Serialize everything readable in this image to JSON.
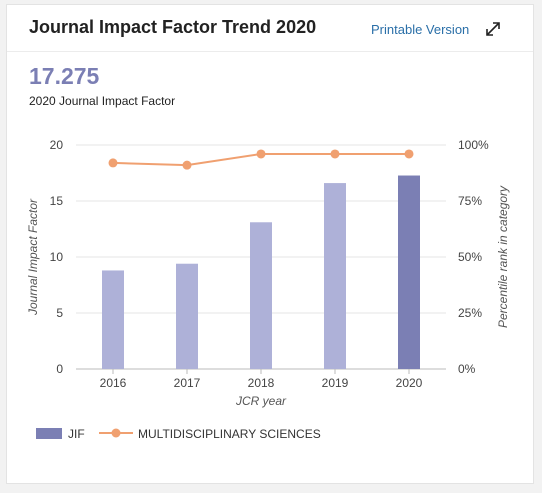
{
  "header": {
    "title": "Journal Impact Factor Trend 2020",
    "print_label": "Printable Version",
    "expand_icon": "expand-icon"
  },
  "metric": {
    "value": "17.275",
    "label": "2020 Journal Impact Factor"
  },
  "colors": {
    "bar": "#aeb1d8",
    "bar_highlight": "#7b7fb4",
    "line": "#f0a070",
    "grid": "#e6e6e6"
  },
  "chart_data": {
    "type": "bar",
    "categories": [
      "2016",
      "2017",
      "2018",
      "2019",
      "2020"
    ],
    "series": [
      {
        "name": "JIF",
        "type": "bar",
        "axis": "left",
        "values": [
          8.8,
          9.4,
          13.1,
          16.6,
          17.275
        ]
      },
      {
        "name": "MULTIDISCIPLINARY SCIENCES",
        "type": "line",
        "axis": "right",
        "values": [
          92,
          91,
          96,
          96,
          96
        ]
      }
    ],
    "xlabel": "JCR year",
    "ylabel": "Journal Impact Factor",
    "y2label": "Percentile rank in category",
    "ylim": [
      0,
      20
    ],
    "y2lim": [
      0,
      100
    ],
    "yticks": [
      "0",
      "5",
      "10",
      "15",
      "20"
    ],
    "y2ticks": [
      "0%",
      "25%",
      "50%",
      "75%",
      "100%"
    ],
    "grid": true,
    "legend": "bottom-left"
  }
}
